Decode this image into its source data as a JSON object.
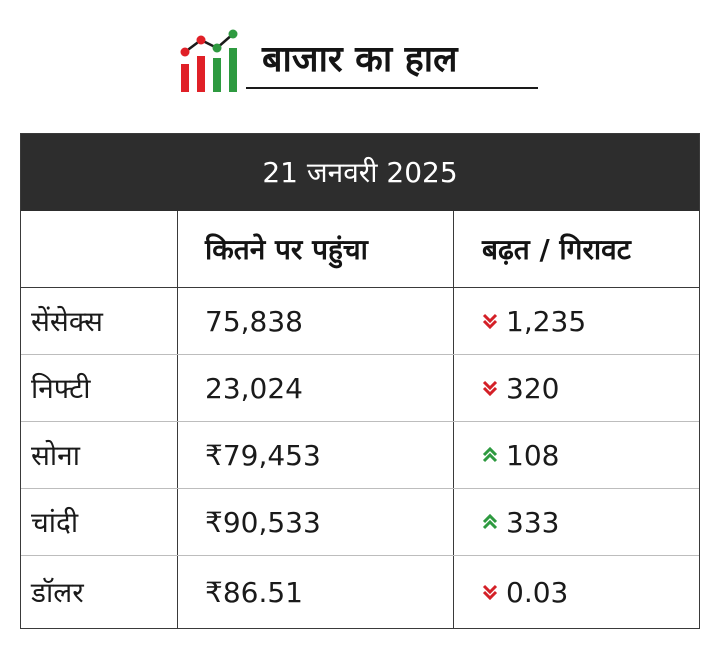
{
  "header": {
    "title": "बाजार का हाल",
    "logo_icon": "chart-bars-icon",
    "colors": {
      "red": "#e02027",
      "green": "#2e9a40",
      "dark": "#141414"
    }
  },
  "table": {
    "date": "21 जनवरी 2025",
    "columns": [
      "",
      "कितने पर पहुंचा",
      "बढ़त / गिरावट"
    ],
    "rows": [
      {
        "name": "सेंसेक्स",
        "value": "75,838",
        "change": "1,235",
        "direction": "down"
      },
      {
        "name": "निफ्टी",
        "value": "23,024",
        "change": "320",
        "direction": "down"
      },
      {
        "name": "सोना",
        "value": "₹79,453",
        "change": "108",
        "direction": "up"
      },
      {
        "name": "चांदी",
        "value": "₹90,533",
        "change": "333",
        "direction": "up"
      },
      {
        "name": "डॉलर",
        "value": "₹86.51",
        "change": "0.03",
        "direction": "down"
      }
    ],
    "colors": {
      "up": "#2e9a40",
      "down": "#d42027",
      "header_bg": "#2d2d2d"
    }
  }
}
